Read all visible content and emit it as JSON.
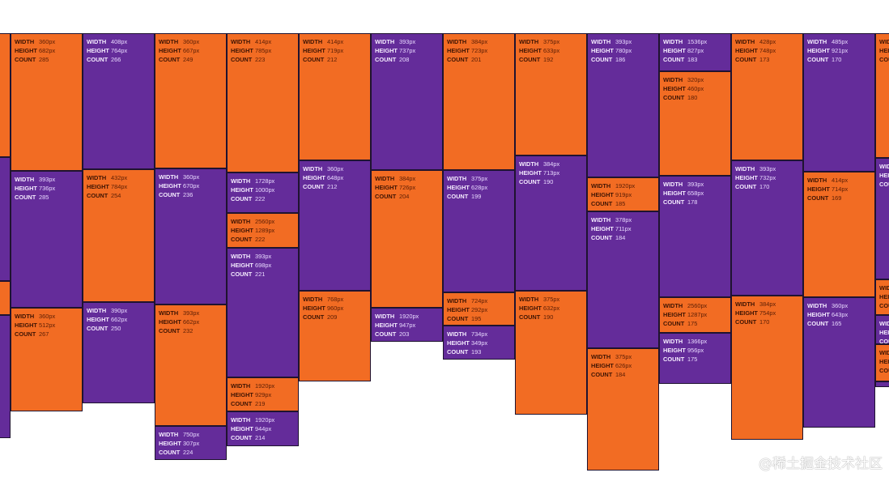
{
  "chart_data": {
    "type": "masonry",
    "labels": {
      "width": "WIDTH",
      "height": "HEIGHT",
      "count": "COUNT"
    },
    "colors": {
      "orange": "#f26c23",
      "purple": "#642c9a",
      "border": "#1f1330"
    },
    "columns": [
      {
        "index": 0,
        "items": [
          {
            "color": "orange",
            "width": "",
            "height": "",
            "count": ""
          },
          {
            "color": "purple",
            "width": "",
            "height": "",
            "count": ""
          },
          {
            "color": "orange",
            "width": "",
            "height": "",
            "count": ""
          },
          {
            "color": "purple",
            "width": "",
            "height": "",
            "count": ""
          }
        ]
      },
      {
        "index": 1,
        "items": [
          {
            "color": "orange",
            "width": "360px",
            "height": "682px",
            "count": "285"
          },
          {
            "color": "purple",
            "width": "393px",
            "height": "736px",
            "count": "285"
          },
          {
            "color": "orange",
            "width": "360px",
            "height": "512px",
            "count": "267"
          }
        ]
      },
      {
        "index": 2,
        "items": [
          {
            "color": "purple",
            "width": "408px",
            "height": "764px",
            "count": "266"
          },
          {
            "color": "orange",
            "width": "432px",
            "height": "784px",
            "count": "254"
          },
          {
            "color": "purple",
            "width": "390px",
            "height": "662px",
            "count": "250"
          }
        ]
      },
      {
        "index": 3,
        "items": [
          {
            "color": "orange",
            "width": "360px",
            "height": "667px",
            "count": "249"
          },
          {
            "color": "purple",
            "width": "360px",
            "height": "670px",
            "count": "236"
          },
          {
            "color": "orange",
            "width": "393px",
            "height": "662px",
            "count": "232"
          },
          {
            "color": "purple",
            "width": "750px",
            "height": "307px",
            "count": "224"
          }
        ]
      },
      {
        "index": 4,
        "items": [
          {
            "color": "orange",
            "width": "414px",
            "height": "785px",
            "count": "223"
          },
          {
            "color": "purple",
            "width": "1728px",
            "height": "1000px",
            "count": "222"
          },
          {
            "color": "orange",
            "width": "2560px",
            "height": "1289px",
            "count": "222"
          },
          {
            "color": "purple",
            "width": "393px",
            "height": "698px",
            "count": "221"
          },
          {
            "color": "orange",
            "width": "1920px",
            "height": "929px",
            "count": "219"
          },
          {
            "color": "purple",
            "width": "1920px",
            "height": "944px",
            "count": "214"
          }
        ]
      },
      {
        "index": 5,
        "items": [
          {
            "color": "orange",
            "width": "414px",
            "height": "719px",
            "count": "212"
          },
          {
            "color": "purple",
            "width": "360px",
            "height": "648px",
            "count": "212"
          },
          {
            "color": "orange",
            "width": "768px",
            "height": "960px",
            "count": "209"
          }
        ]
      },
      {
        "index": 6,
        "items": [
          {
            "color": "purple",
            "width": "393px",
            "height": "737px",
            "count": "208"
          },
          {
            "color": "orange",
            "width": "384px",
            "height": "726px",
            "count": "204"
          },
          {
            "color": "purple",
            "width": "1920px",
            "height": "947px",
            "count": "203"
          }
        ]
      },
      {
        "index": 7,
        "items": [
          {
            "color": "orange",
            "width": "384px",
            "height": "723px",
            "count": "201"
          },
          {
            "color": "purple",
            "width": "375px",
            "height": "628px",
            "count": "199"
          },
          {
            "color": "orange",
            "width": "724px",
            "height": "292px",
            "count": "195"
          },
          {
            "color": "purple",
            "width": "734px",
            "height": "349px",
            "count": "193"
          }
        ]
      },
      {
        "index": 8,
        "items": [
          {
            "color": "orange",
            "width": "375px",
            "height": "633px",
            "count": "192"
          },
          {
            "color": "purple",
            "width": "384px",
            "height": "713px",
            "count": "190"
          },
          {
            "color": "orange",
            "width": "375px",
            "height": "632px",
            "count": "190"
          }
        ]
      },
      {
        "index": 9,
        "items": [
          {
            "color": "purple",
            "width": "393px",
            "height": "780px",
            "count": "186"
          },
          {
            "color": "orange",
            "width": "1920px",
            "height": "919px",
            "count": "185"
          },
          {
            "color": "purple",
            "width": "378px",
            "height": "711px",
            "count": "184"
          },
          {
            "color": "orange",
            "width": "375px",
            "height": "626px",
            "count": "184"
          }
        ]
      },
      {
        "index": 10,
        "items": [
          {
            "color": "purple",
            "width": "1536px",
            "height": "827px",
            "count": "183"
          },
          {
            "color": "orange",
            "width": "320px",
            "height": "460px",
            "count": "180"
          },
          {
            "color": "purple",
            "width": "393px",
            "height": "658px",
            "count": "178"
          },
          {
            "color": "orange",
            "width": "2560px",
            "height": "1287px",
            "count": "175"
          },
          {
            "color": "purple",
            "width": "1366px",
            "height": "956px",
            "count": "175"
          }
        ]
      },
      {
        "index": 11,
        "items": [
          {
            "color": "orange",
            "width": "428px",
            "height": "748px",
            "count": "173"
          },
          {
            "color": "purple",
            "width": "393px",
            "height": "732px",
            "count": "170"
          },
          {
            "color": "orange",
            "width": "384px",
            "height": "754px",
            "count": "170"
          }
        ]
      },
      {
        "index": 12,
        "items": [
          {
            "color": "purple",
            "width": "485px",
            "height": "921px",
            "count": "170"
          },
          {
            "color": "orange",
            "width": "414px",
            "height": "714px",
            "count": "169"
          },
          {
            "color": "purple",
            "width": "360px",
            "height": "643px",
            "count": "165"
          }
        ]
      },
      {
        "index": 13,
        "items": [
          {
            "color": "orange",
            "width": "",
            "height": "",
            "count": ""
          },
          {
            "color": "purple",
            "width": "",
            "height": "",
            "count": ""
          },
          {
            "color": "orange",
            "width": "",
            "height": "",
            "count": ""
          },
          {
            "color": "purple",
            "width": "",
            "height": "",
            "count": ""
          },
          {
            "color": "orange",
            "width": "",
            "height": "",
            "count": ""
          },
          {
            "color": "purple",
            "width": "",
            "height": "",
            "count": ""
          }
        ]
      }
    ]
  },
  "watermark": "@稀土掘金技术社区"
}
